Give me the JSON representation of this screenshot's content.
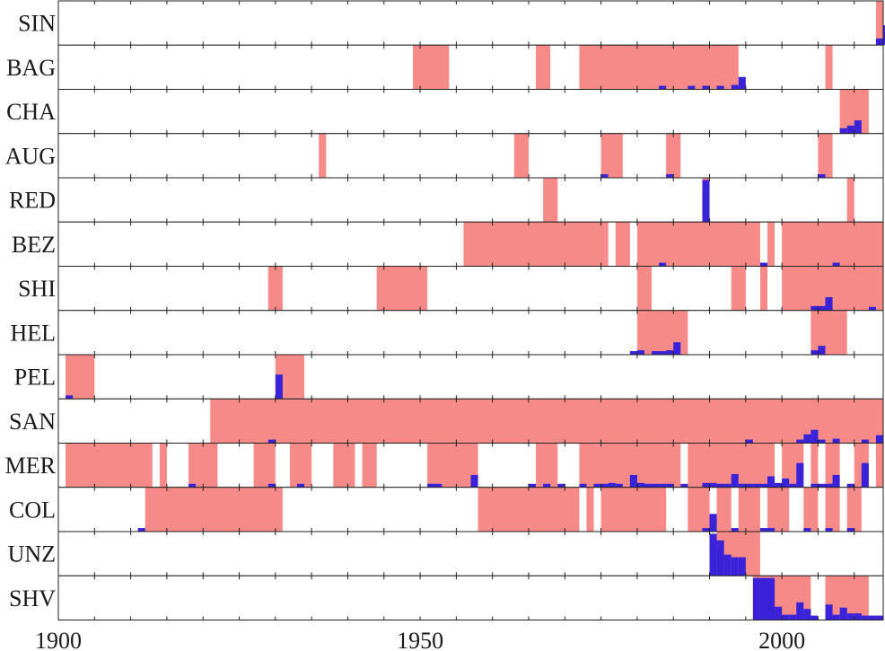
{
  "chart_data": {
    "type": "heatmap",
    "title": "",
    "xlabel": "",
    "ylabel": "",
    "xlim": [
      1900,
      2014
    ],
    "x_ticks": [
      1900,
      1950,
      2000
    ],
    "colors": {
      "period": "#f58a88",
      "count": "#3a22d9",
      "frame": "#222222",
      "background": "#ffffff"
    },
    "rows": [
      {
        "label": "SIN",
        "spans": [
          [
            2013,
            2014
          ]
        ],
        "bars": [
          [
            2013,
            0.15
          ],
          [
            2014,
            0.45
          ]
        ]
      },
      {
        "label": "BAG",
        "spans": [
          [
            1949,
            1954
          ],
          [
            1966,
            1968
          ],
          [
            1972,
            1994
          ],
          [
            2006,
            2007
          ]
        ],
        "bars": [
          [
            1983,
            0.08
          ],
          [
            1987,
            0.08
          ],
          [
            1989,
            0.08
          ],
          [
            1991,
            0.08
          ],
          [
            1993,
            0.1
          ],
          [
            1994,
            0.28
          ]
        ]
      },
      {
        "label": "CHA",
        "spans": [
          [
            2008,
            2012
          ]
        ],
        "bars": [
          [
            2008,
            0.12
          ],
          [
            2009,
            0.18
          ],
          [
            2010,
            0.3
          ]
        ]
      },
      {
        "label": "AUG",
        "spans": [
          [
            1936,
            1937
          ],
          [
            1963,
            1965
          ],
          [
            1975,
            1978
          ],
          [
            1984,
            1986
          ],
          [
            2005,
            2007
          ]
        ],
        "bars": [
          [
            1975,
            0.08
          ],
          [
            1984,
            0.08
          ],
          [
            2005,
            0.08
          ]
        ]
      },
      {
        "label": "RED",
        "spans": [
          [
            1967,
            1969
          ],
          [
            1989,
            1990
          ],
          [
            2009,
            2010
          ]
        ],
        "bars": [
          [
            1989,
            0.95
          ]
        ]
      },
      {
        "label": "BEZ",
        "spans": [
          [
            1956,
            1976
          ],
          [
            1977,
            1979
          ],
          [
            1980,
            1997
          ],
          [
            1998,
            1999
          ],
          [
            2000,
            2014
          ]
        ],
        "bars": [
          [
            1983,
            0.08
          ],
          [
            1997,
            0.08
          ],
          [
            2007,
            0.08
          ]
        ]
      },
      {
        "label": "SHI",
        "spans": [
          [
            1929,
            1931
          ],
          [
            1944,
            1951
          ],
          [
            1980,
            1982
          ],
          [
            1993,
            1995
          ],
          [
            1997,
            1998
          ],
          [
            2000,
            2014
          ]
        ],
        "bars": [
          [
            2004,
            0.1
          ],
          [
            2005,
            0.1
          ],
          [
            2006,
            0.3
          ],
          [
            2012,
            0.08
          ]
        ]
      },
      {
        "label": "HEL",
        "spans": [
          [
            1980,
            1987
          ],
          [
            2004,
            2009
          ]
        ],
        "bars": [
          [
            1979,
            0.08
          ],
          [
            1980,
            0.1
          ],
          [
            1982,
            0.08
          ],
          [
            1983,
            0.08
          ],
          [
            1984,
            0.1
          ],
          [
            1985,
            0.28
          ],
          [
            2004,
            0.1
          ],
          [
            2005,
            0.2
          ]
        ]
      },
      {
        "label": "PEL",
        "spans": [
          [
            1901,
            1905
          ],
          [
            1930,
            1934
          ]
        ],
        "bars": [
          [
            1901,
            0.08
          ],
          [
            1930,
            0.55
          ]
        ]
      },
      {
        "label": "SAN",
        "spans": [
          [
            1921,
            2014
          ]
        ],
        "bars": [
          [
            1929,
            0.08
          ],
          [
            1995,
            0.08
          ],
          [
            2002,
            0.08
          ],
          [
            2003,
            0.2
          ],
          [
            2004,
            0.3
          ],
          [
            2005,
            0.08
          ],
          [
            2007,
            0.1
          ],
          [
            2011,
            0.08
          ],
          [
            2013,
            0.18
          ]
        ]
      },
      {
        "label": "MER",
        "spans": [
          [
            1901,
            1913
          ],
          [
            1914,
            1915
          ],
          [
            1918,
            1922
          ],
          [
            1927,
            1930
          ],
          [
            1932,
            1935
          ],
          [
            1938,
            1941
          ],
          [
            1942,
            1944
          ],
          [
            1951,
            1958
          ],
          [
            1966,
            1969
          ],
          [
            1972,
            1986
          ],
          [
            1987,
            1999
          ],
          [
            2000,
            2003
          ],
          [
            2004,
            2005
          ],
          [
            2006,
            2008
          ],
          [
            2010,
            2012
          ],
          [
            2013,
            2014
          ]
        ],
        "bars": [
          [
            1918,
            0.08
          ],
          [
            1929,
            0.08
          ],
          [
            1933,
            0.08
          ],
          [
            1951,
            0.08
          ],
          [
            1952,
            0.08
          ],
          [
            1957,
            0.28
          ],
          [
            1965,
            0.08
          ],
          [
            1967,
            0.08
          ],
          [
            1969,
            0.08
          ],
          [
            1972,
            0.08
          ],
          [
            1974,
            0.08
          ],
          [
            1975,
            0.08
          ],
          [
            1976,
            0.1
          ],
          [
            1977,
            0.08
          ],
          [
            1979,
            0.28
          ],
          [
            1980,
            0.1
          ],
          [
            1981,
            0.08
          ],
          [
            1982,
            0.08
          ],
          [
            1983,
            0.08
          ],
          [
            1984,
            0.08
          ],
          [
            1986,
            0.08
          ],
          [
            1989,
            0.1
          ],
          [
            1990,
            0.1
          ],
          [
            1991,
            0.08
          ],
          [
            1992,
            0.08
          ],
          [
            1993,
            0.3
          ],
          [
            1994,
            0.08
          ],
          [
            1995,
            0.08
          ],
          [
            1996,
            0.08
          ],
          [
            1997,
            0.08
          ],
          [
            1998,
            0.25
          ],
          [
            1999,
            0.1
          ],
          [
            2000,
            0.2
          ],
          [
            2001,
            0.08
          ],
          [
            2002,
            0.55
          ],
          [
            2004,
            0.08
          ],
          [
            2005,
            0.08
          ],
          [
            2006,
            0.08
          ],
          [
            2007,
            0.28
          ],
          [
            2009,
            0.08
          ],
          [
            2011,
            0.55
          ]
        ]
      },
      {
        "label": "COL",
        "spans": [
          [
            1912,
            1931
          ],
          [
            1958,
            1972
          ],
          [
            1973,
            1974
          ],
          [
            1975,
            1984
          ],
          [
            1987,
            1990
          ],
          [
            1991,
            1993
          ],
          [
            1994,
            1997
          ],
          [
            1998,
            2001
          ],
          [
            2003,
            2005
          ],
          [
            2006,
            2008
          ],
          [
            2009,
            2011
          ]
        ],
        "bars": [
          [
            1911,
            0.08
          ],
          [
            1989,
            0.08
          ],
          [
            1990,
            0.4
          ],
          [
            1993,
            0.08
          ],
          [
            1997,
            0.08
          ],
          [
            1998,
            0.08
          ],
          [
            2003,
            0.08
          ],
          [
            2006,
            0.08
          ],
          [
            2009,
            0.08
          ]
        ]
      },
      {
        "label": "UNZ",
        "spans": [
          [
            1991,
            1997
          ]
        ],
        "bars": [
          [
            1990,
            0.95
          ],
          [
            1991,
            0.8
          ],
          [
            1992,
            0.48
          ],
          [
            1993,
            0.42
          ],
          [
            1994,
            0.42
          ]
        ]
      },
      {
        "label": "SHV",
        "spans": [
          [
            1996,
            2004
          ],
          [
            2006,
            2012
          ]
        ],
        "bars": [
          [
            1996,
            0.95
          ],
          [
            1997,
            0.95
          ],
          [
            1998,
            0.95
          ],
          [
            1999,
            0.3
          ],
          [
            2000,
            0.12
          ],
          [
            2001,
            0.12
          ],
          [
            2002,
            0.4
          ],
          [
            2003,
            0.25
          ],
          [
            2004,
            0.1
          ],
          [
            2006,
            0.35
          ],
          [
            2007,
            0.12
          ],
          [
            2008,
            0.28
          ],
          [
            2009,
            0.15
          ],
          [
            2010,
            0.15
          ],
          [
            2011,
            0.1
          ],
          [
            2012,
            0.1
          ],
          [
            2013,
            0.1
          ]
        ]
      }
    ]
  }
}
